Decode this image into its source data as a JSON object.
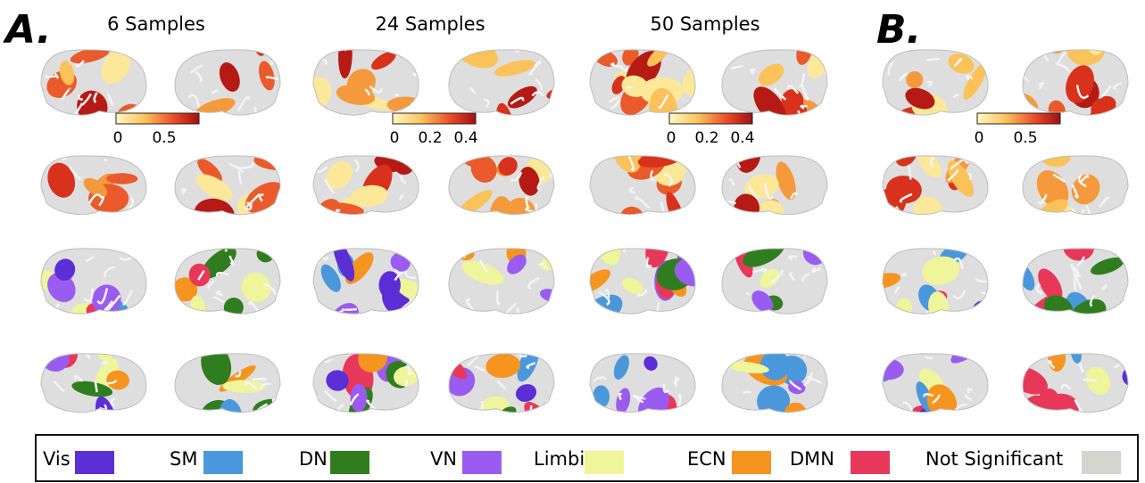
{
  "panel_a": {
    "label": "A.",
    "columns": [
      {
        "title": "6 Samples",
        "colorbar_ticks": [
          "0",
          "0.5"
        ]
      },
      {
        "title": "24 Samples",
        "colorbar_ticks": [
          "0",
          "0.2",
          "0.4"
        ]
      },
      {
        "title": "50 Samples",
        "colorbar_ticks": [
          "0",
          "0.2",
          "0.4"
        ]
      }
    ]
  },
  "panel_b": {
    "label": "B.",
    "colorbar_ticks": [
      "0",
      "0.5"
    ]
  },
  "legend": [
    {
      "name": "Vis",
      "color": "#5b2ed6"
    },
    {
      "name": "SM",
      "color": "#4a98db"
    },
    {
      "name": "DN",
      "color": "#2f7d1f"
    },
    {
      "name": "VN",
      "color": "#9a5cf0"
    },
    {
      "name": "Limbic",
      "color": "#eef59a"
    },
    {
      "name": "ECN",
      "color": "#f5941f"
    },
    {
      "name": "DMN",
      "color": "#e8385a"
    },
    {
      "name": "Not Significant",
      "color": "#d5d5d0"
    }
  ]
}
